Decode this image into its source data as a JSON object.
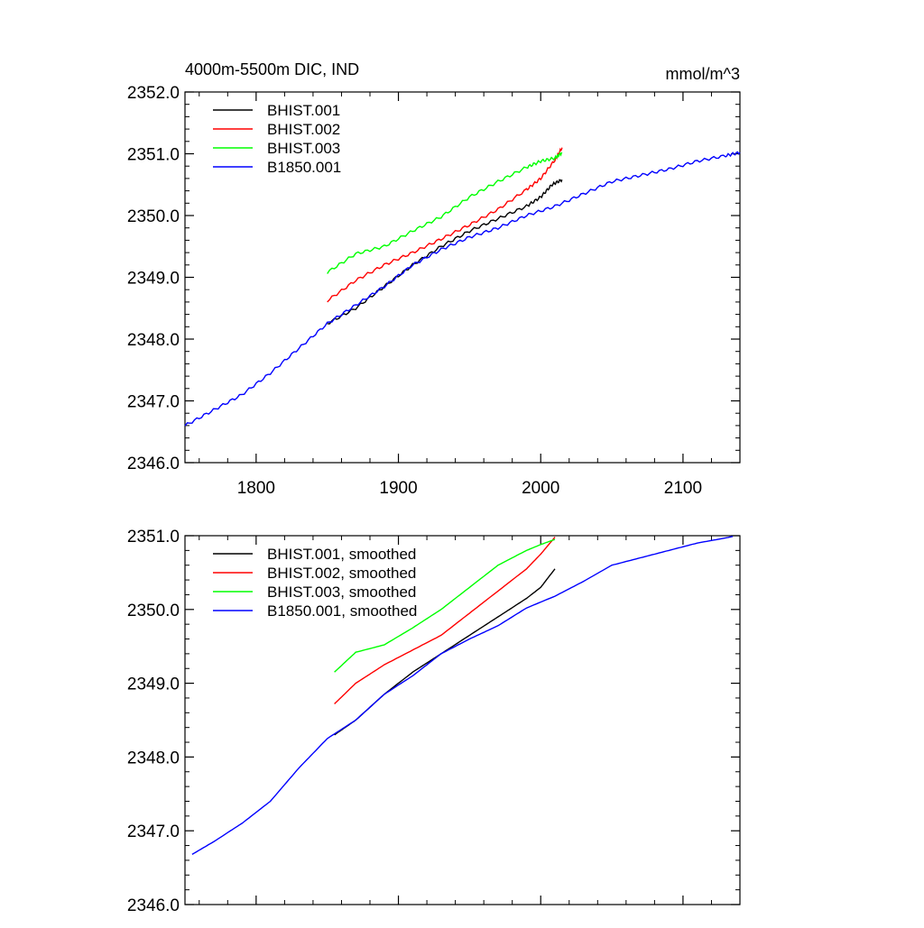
{
  "chart_data": [
    {
      "type": "line",
      "title": "4000m-5500m DIC, IND",
      "units": "mmol/m^3",
      "xlim": [
        1750,
        2140
      ],
      "ylim": [
        2346.0,
        2352.0
      ],
      "x_ticks": [
        1800,
        1900,
        2000,
        2100
      ],
      "y_ticks": [
        "2346.0",
        "2347.0",
        "2348.0",
        "2349.0",
        "2350.0",
        "2351.0",
        "2352.0"
      ],
      "grid": false,
      "legend_position": "top-left",
      "series": [
        {
          "name": "BHIST.001",
          "color": "#000000",
          "x": [
            1850,
            1870,
            1890,
            1910,
            1930,
            1950,
            1970,
            1990,
            2000,
            2008,
            2015
          ],
          "y": [
            2348.25,
            2348.5,
            2348.85,
            2349.2,
            2349.5,
            2349.75,
            2349.95,
            2350.15,
            2350.3,
            2350.5,
            2350.58
          ]
        },
        {
          "name": "BHIST.002",
          "color": "#ff0000",
          "x": [
            1850,
            1870,
            1890,
            1910,
            1930,
            1950,
            1970,
            1990,
            2000,
            2010,
            2015
          ],
          "y": [
            2348.62,
            2348.95,
            2349.2,
            2349.4,
            2349.62,
            2349.85,
            2350.1,
            2350.42,
            2350.6,
            2350.9,
            2351.1
          ]
        },
        {
          "name": "BHIST.003",
          "color": "#00ff00",
          "x": [
            1850,
            1870,
            1890,
            1910,
            1930,
            1950,
            1970,
            1990,
            2000,
            2010,
            2015
          ],
          "y": [
            2349.08,
            2349.38,
            2349.5,
            2349.75,
            2349.98,
            2350.3,
            2350.55,
            2350.78,
            2350.88,
            2350.93,
            2351.02
          ]
        },
        {
          "name": "B1850.001",
          "color": "#0000ff",
          "x": [
            1750,
            1770,
            1790,
            1810,
            1830,
            1850,
            1870,
            1890,
            1910,
            1930,
            1950,
            1970,
            1990,
            2010,
            2030,
            2050,
            2070,
            2090,
            2110,
            2130,
            2140
          ],
          "y": [
            2346.6,
            2346.85,
            2347.1,
            2347.45,
            2347.85,
            2348.25,
            2348.55,
            2348.85,
            2349.2,
            2349.45,
            2349.65,
            2349.8,
            2350.0,
            2350.15,
            2350.35,
            2350.55,
            2350.65,
            2350.75,
            2350.88,
            2350.97,
            2351.02
          ]
        }
      ]
    },
    {
      "type": "line",
      "xlim": [
        1750,
        2140
      ],
      "ylim": [
        2346.0,
        2351.0
      ],
      "x_ticks": [
        1800,
        1900,
        2000,
        2100
      ],
      "y_ticks": [
        "2346.0",
        "2347.0",
        "2348.0",
        "2349.0",
        "2350.0",
        "2351.0"
      ],
      "grid": false,
      "legend_position": "top-left",
      "series": [
        {
          "name": "BHIST.001, smoothed",
          "color": "#000000",
          "x": [
            1855,
            1870,
            1890,
            1910,
            1930,
            1950,
            1970,
            1990,
            2000,
            2010
          ],
          "y": [
            2348.3,
            2348.5,
            2348.85,
            2349.15,
            2349.4,
            2349.65,
            2349.9,
            2350.15,
            2350.3,
            2350.55
          ]
        },
        {
          "name": "BHIST.002, smoothed",
          "color": "#ff0000",
          "x": [
            1855,
            1870,
            1890,
            1910,
            1930,
            1950,
            1970,
            1990,
            2000,
            2010
          ],
          "y": [
            2348.72,
            2349.0,
            2349.25,
            2349.45,
            2349.65,
            2349.95,
            2350.25,
            2350.55,
            2350.75,
            2350.98
          ]
        },
        {
          "name": "BHIST.003, smoothed",
          "color": "#00ff00",
          "x": [
            1855,
            1870,
            1890,
            1910,
            1930,
            1950,
            1970,
            1990,
            2000,
            2010
          ],
          "y": [
            2349.15,
            2349.42,
            2349.52,
            2349.75,
            2350.0,
            2350.3,
            2350.6,
            2350.8,
            2350.88,
            2350.95
          ]
        },
        {
          "name": "B1850.001, smoothed",
          "color": "#0000ff",
          "x": [
            1755,
            1770,
            1790,
            1810,
            1830,
            1850,
            1870,
            1890,
            1910,
            1930,
            1950,
            1970,
            1990,
            2010,
            2030,
            2050,
            2070,
            2090,
            2110,
            2130,
            2135
          ],
          "y": [
            2346.68,
            2346.85,
            2347.1,
            2347.4,
            2347.85,
            2348.25,
            2348.5,
            2348.85,
            2349.1,
            2349.4,
            2349.6,
            2349.78,
            2350.02,
            2350.18,
            2350.38,
            2350.6,
            2350.7,
            2350.8,
            2350.9,
            2350.97,
            2350.99
          ]
        }
      ]
    }
  ]
}
